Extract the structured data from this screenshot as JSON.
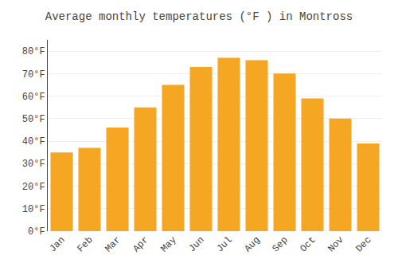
{
  "chart_data": {
    "type": "bar",
    "title": "Average monthly temperatures (°F ) in Montross",
    "categories": [
      "Jan",
      "Feb",
      "Mar",
      "Apr",
      "May",
      "Jun",
      "Jul",
      "Aug",
      "Sep",
      "Oct",
      "Nov",
      "Dec"
    ],
    "values": [
      35,
      37,
      46,
      55,
      65,
      73,
      77,
      76,
      70,
      59,
      50,
      39
    ],
    "color": "#F5A623",
    "ylim": [
      0,
      85
    ],
    "yticks": [
      {
        "value": 0,
        "label": "0°F"
      },
      {
        "value": 10,
        "label": "10°F"
      },
      {
        "value": 20,
        "label": "20°F"
      },
      {
        "value": 30,
        "label": "30°F"
      },
      {
        "value": 40,
        "label": "40°F"
      },
      {
        "value": 50,
        "label": "50°F"
      },
      {
        "value": 60,
        "label": "60°F"
      },
      {
        "value": 70,
        "label": "70°F"
      },
      {
        "value": 80,
        "label": "80°F"
      }
    ],
    "grid": true
  }
}
